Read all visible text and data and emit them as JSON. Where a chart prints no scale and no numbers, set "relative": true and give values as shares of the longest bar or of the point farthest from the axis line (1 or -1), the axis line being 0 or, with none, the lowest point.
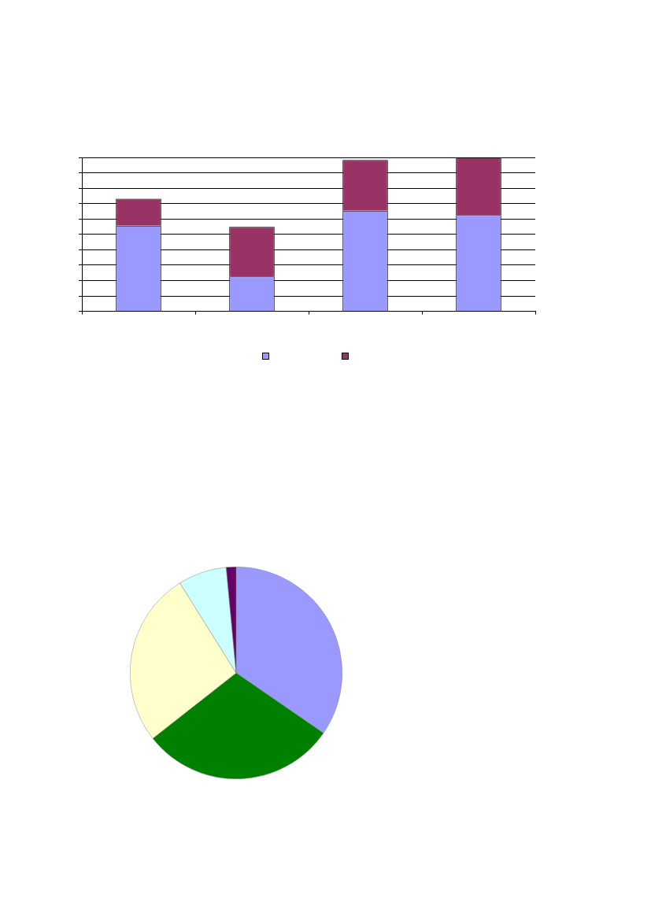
{
  "chart_data": [
    {
      "type": "bar",
      "stacked": true,
      "relative": true,
      "grid": "y",
      "categories": [
        null,
        null,
        null,
        null
      ],
      "series": [
        {
          "color": "#9999ff",
          "values": [
            0.556,
            0.227,
            0.654,
            0.625
          ]
        },
        {
          "color": "#993366",
          "values": [
            0.176,
            0.322,
            0.329,
            0.375
          ]
        }
      ]
    },
    {
      "type": "pie",
      "categories": [
        null,
        null,
        null,
        null,
        null
      ],
      "values": [
        34.6,
        29.8,
        26.7,
        7.4,
        1.5
      ],
      "colors": [
        "#9999ff",
        "#008000",
        "#ffffcc",
        "#ccffff",
        "#660066"
      ]
    }
  ]
}
